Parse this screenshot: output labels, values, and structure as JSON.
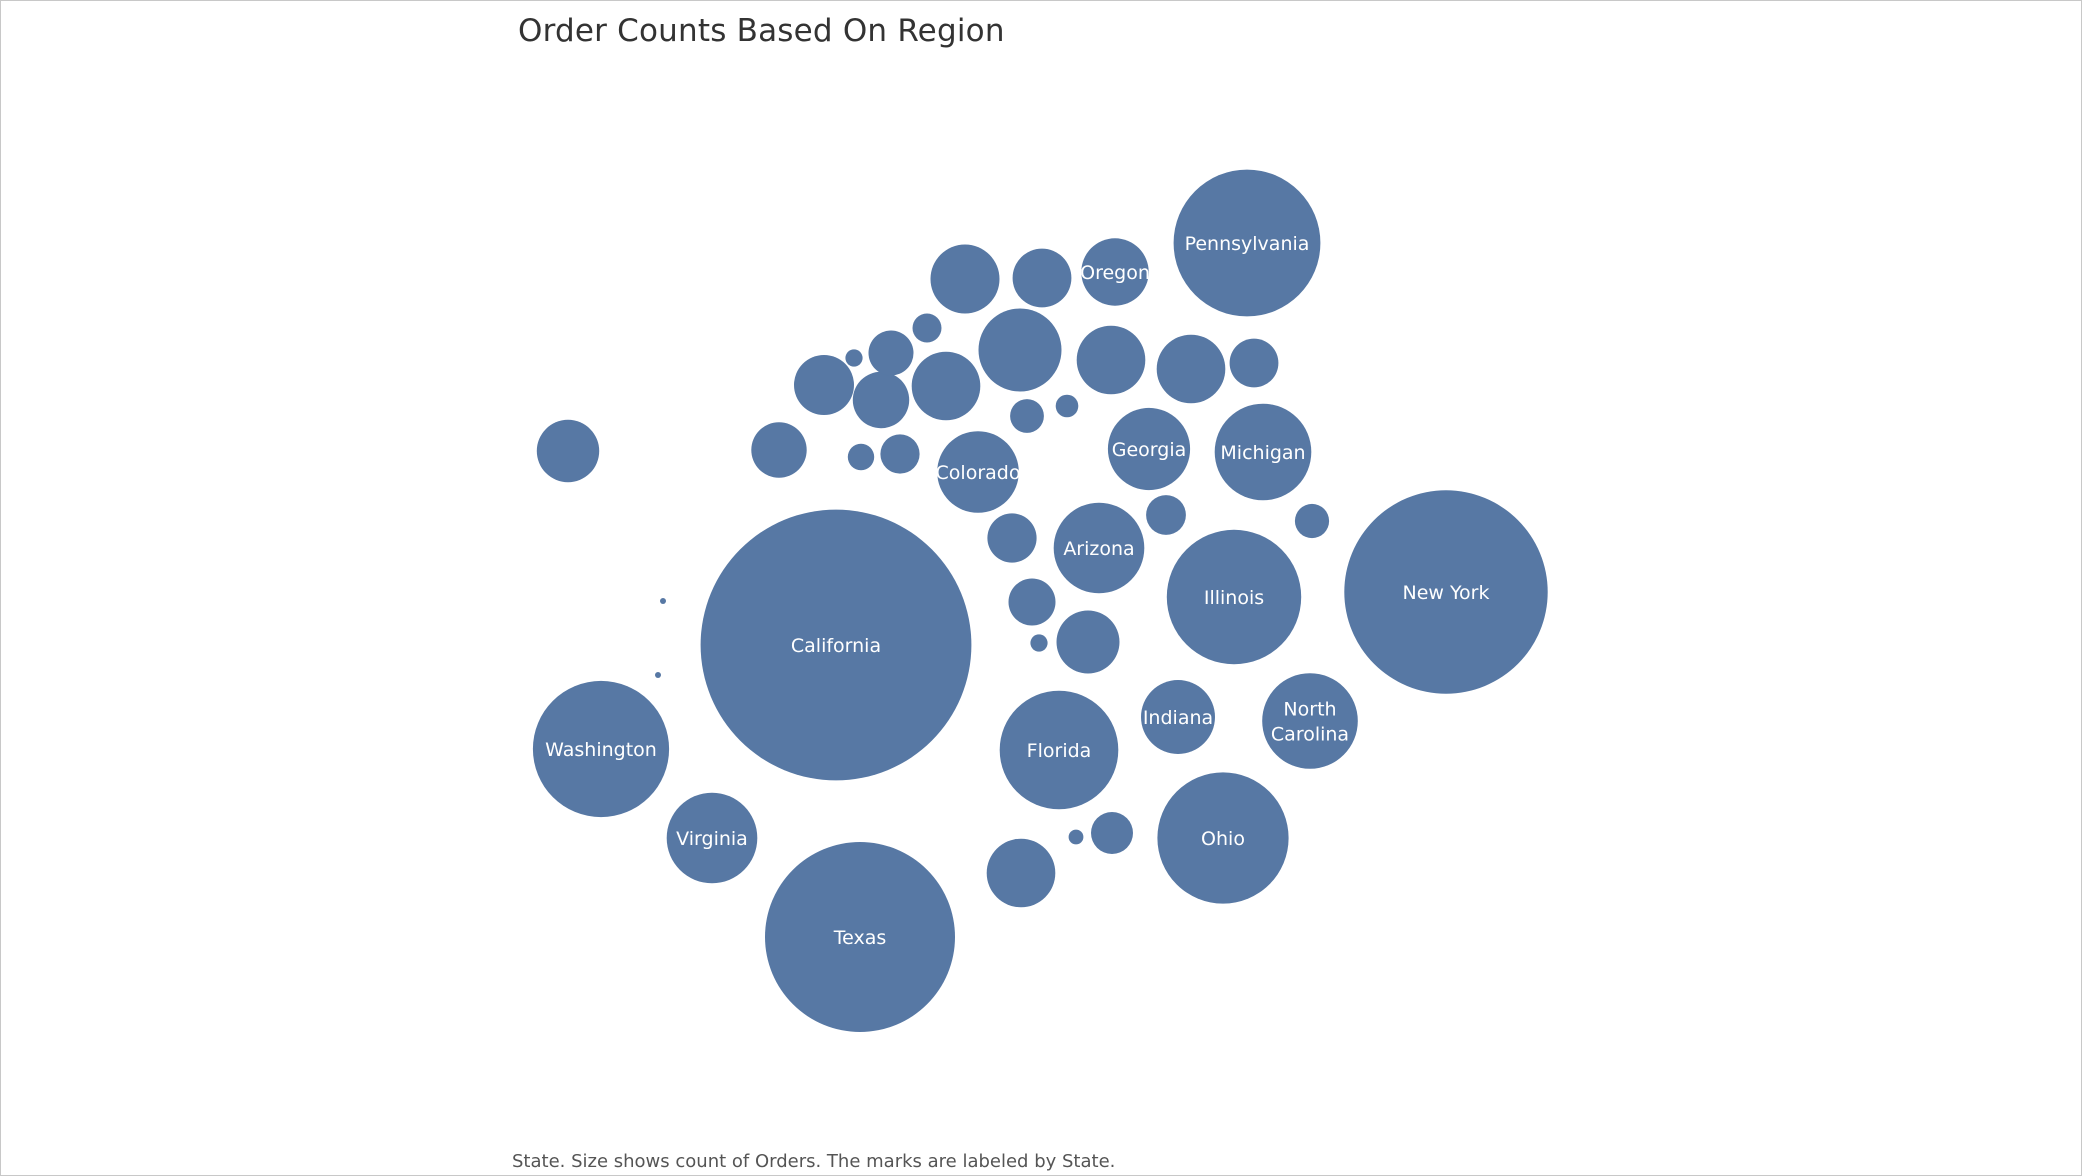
{
  "chart_data": {
    "type": "bubble",
    "title": "Order Counts Based On Region",
    "caption": "State.  Size shows count of Orders.  The marks are labeled by State.",
    "color": "#5778a4",
    "label_color": "#ffffff",
    "size_measure": "count of Orders",
    "series": [
      {
        "label": "California",
        "value": 2001
      },
      {
        "label": "New York",
        "value": 1128
      },
      {
        "label": "Texas",
        "value": 985
      },
      {
        "label": "Pennsylvania",
        "value": 587
      },
      {
        "label": "Washington",
        "value": 506
      },
      {
        "label": "Illinois",
        "value": 492
      },
      {
        "label": "Ohio",
        "value": 469
      },
      {
        "label": "Florida",
        "value": 383
      },
      {
        "label": "Michigan",
        "value": 255
      },
      {
        "label": "North Carolina",
        "value": 249
      },
      {
        "label": "Arizona",
        "value": 224
      },
      {
        "label": "Virginia",
        "value": 224
      },
      {
        "label": "Georgia",
        "value": 184
      },
      {
        "label": "Colorado",
        "value": 182
      },
      {
        "label": "Indiana",
        "value": 149
      },
      {
        "label": "Oregon",
        "value": 124
      },
      {
        "label": "",
        "value": 188
      },
      {
        "label": "",
        "value": 130
      },
      {
        "label": "",
        "value": 128
      },
      {
        "label": "",
        "value": 128
      },
      {
        "label": "",
        "value": 128
      },
      {
        "label": "",
        "value": 128
      },
      {
        "label": "",
        "value": 108
      },
      {
        "label": "",
        "value": 106
      },
      {
        "label": "",
        "value": 98
      },
      {
        "label": "",
        "value": 94
      },
      {
        "label": "",
        "value": 87
      },
      {
        "label": "",
        "value": 84
      },
      {
        "label": "",
        "value": 66
      },
      {
        "label": "",
        "value": 65
      },
      {
        "label": "",
        "value": 60
      },
      {
        "label": "",
        "value": 55
      },
      {
        "label": "",
        "value": 48
      },
      {
        "label": "",
        "value": 43
      },
      {
        "label": "",
        "value": 42
      },
      {
        "label": "",
        "value": 32
      },
      {
        "label": "",
        "value": 31
      },
      {
        "label": "",
        "value": 23
      },
      {
        "label": "",
        "value": 19
      },
      {
        "label": "",
        "value": 14
      },
      {
        "label": "",
        "value": 8
      },
      {
        "label": "",
        "value": 8
      },
      {
        "label": "",
        "value": 6
      },
      {
        "label": "",
        "value": 1
      },
      {
        "label": "",
        "value": 1
      }
    ]
  }
}
